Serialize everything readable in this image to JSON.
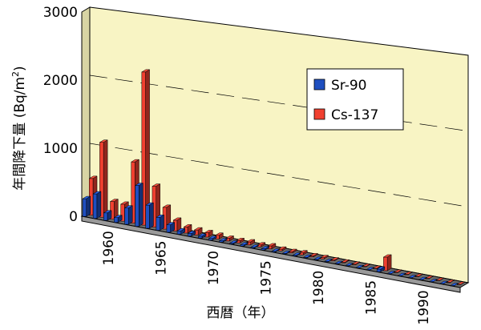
{
  "chart_data": {
    "type": "bar",
    "style": "3d-clustered",
    "title": "",
    "xlabel": "西暦（年）",
    "ylabel": "年間降下量 (Bq/m²)",
    "ylabel_main": "年間降下量 (Bq/m",
    "ylabel_sup": "2",
    "ylabel_end": ")",
    "ylim": [
      0,
      3000
    ],
    "yticks": [
      0,
      1000,
      2000,
      3000
    ],
    "ytick_labels": [
      "0",
      "1000",
      "2000",
      "3000"
    ],
    "xtick_labels": [
      "1960",
      "1965",
      "1970",
      "1975",
      "1980",
      "1985",
      "1990"
    ],
    "legend_position": "right",
    "grid": true,
    "categories": [
      1958,
      1959,
      1960,
      1961,
      1962,
      1963,
      1964,
      1965,
      1966,
      1967,
      1968,
      1969,
      1970,
      1971,
      1972,
      1973,
      1974,
      1975,
      1976,
      1977,
      1978,
      1979,
      1980,
      1981,
      1982,
      1983,
      1984,
      1985,
      1986,
      1987,
      1988,
      1989,
      1990,
      1991,
      1992,
      1993
    ],
    "series": [
      {
        "name": "Sr-90",
        "color": "#1f4fc0",
        "values": [
          260,
          360,
          110,
          70,
          240,
          600,
          340,
          190,
          110,
          50,
          40,
          30,
          25,
          20,
          15,
          18,
          12,
          20,
          12,
          10,
          12,
          8,
          8,
          6,
          5,
          4,
          3,
          3,
          40,
          3,
          2,
          2,
          2,
          2,
          2,
          2
        ]
      },
      {
        "name": "Cs-137",
        "color": "#f04030",
        "values": [
          540,
          1100,
          260,
          250,
          900,
          2250,
          600,
          320,
          160,
          90,
          75,
          65,
          55,
          40,
          35,
          45,
          30,
          45,
          25,
          20,
          30,
          15,
          18,
          12,
          10,
          8,
          6,
          6,
          200,
          6,
          5,
          4,
          4,
          4,
          4,
          4
        ]
      }
    ]
  }
}
